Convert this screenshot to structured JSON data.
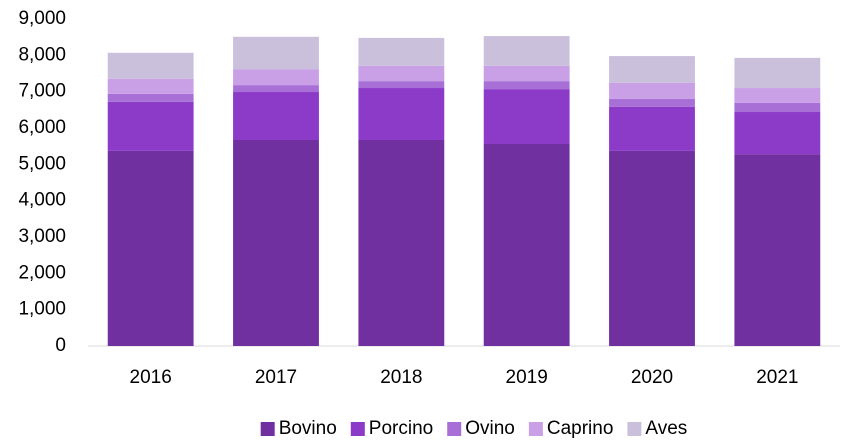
{
  "chart_data": {
    "type": "stacked_bar",
    "categories": [
      "2016",
      "2017",
      "2018",
      "2019",
      "2020",
      "2021"
    ],
    "series": [
      {
        "name": "Bovino",
        "color": "#7030a0",
        "values": [
          5370,
          5670,
          5670,
          5560,
          5370,
          5280
        ]
      },
      {
        "name": "Porcino",
        "color": "#8b3bc7",
        "values": [
          1350,
          1320,
          1430,
          1510,
          1210,
          1160
        ]
      },
      {
        "name": "Ovino",
        "color": "#a86fd6",
        "values": [
          220,
          190,
          190,
          220,
          220,
          250
        ]
      },
      {
        "name": "Caprino",
        "color": "#c9a0e6",
        "values": [
          410,
          440,
          420,
          420,
          440,
          410
        ]
      },
      {
        "name": "Aves",
        "color": "#cbc0dc",
        "values": [
          720,
          890,
          770,
          820,
          740,
          830
        ]
      }
    ],
    "ylim": [
      0,
      9000
    ],
    "yticks": [
      0,
      {
        "value": 1000,
        "label": "1,000"
      },
      {
        "value": 2000,
        "label": "2,000"
      },
      {
        "value": 3000,
        "label": "3,000"
      },
      {
        "value": 4000,
        "label": "4,000"
      },
      {
        "value": 5000,
        "label": "5,000"
      },
      {
        "value": 6000,
        "label": "6,000"
      },
      {
        "value": 7000,
        "label": "7,000"
      },
      {
        "value": 8000,
        "label": "8,000"
      },
      {
        "value": 9000,
        "label": "9,000"
      }
    ],
    "legend": "bottom"
  }
}
